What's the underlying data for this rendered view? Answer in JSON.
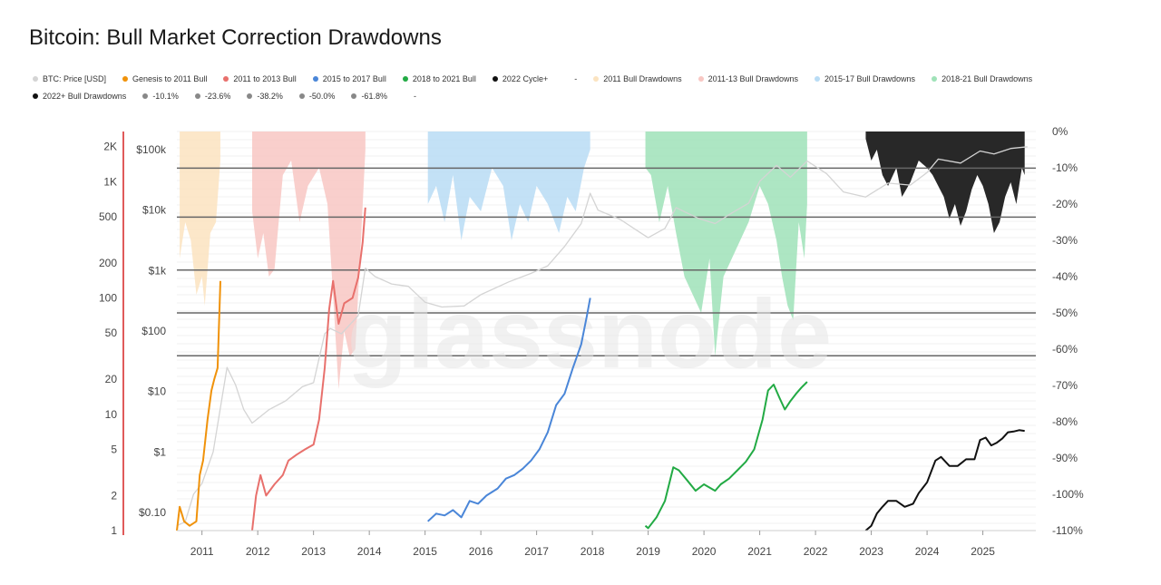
{
  "title": "Bitcoin: Bull Market Correction Drawdowns",
  "legend": {
    "row1": [
      {
        "label": "BTC: Price [USD]",
        "color": "#d4d4d4"
      },
      {
        "label": "Genesis to 2011 Bull",
        "color": "#f0920a"
      },
      {
        "label": "2011 to 2013 Bull",
        "color": "#e8706c"
      },
      {
        "label": "2015 to 2017 Bull",
        "color": "#4a86d8"
      },
      {
        "label": "2018 to 2021 Bull",
        "color": "#22aa44"
      },
      {
        "label": "2022 Cycle+",
        "color": "#111111"
      },
      {
        "label": "-",
        "color": "#ffffff"
      },
      {
        "label": "2011 Bull Drawdowns",
        "color": "#fbe3c0"
      },
      {
        "label": "2011-13 Bull Drawdowns",
        "color": "#f8c7c3"
      },
      {
        "label": "2015-17 Bull Drawdowns",
        "color": "#b9dcf5"
      },
      {
        "label": "2018-21 Bull Drawdowns",
        "color": "#9fe2b8"
      }
    ],
    "row2": [
      {
        "label": "2022+ Bull Drawdowns",
        "color": "#111111"
      },
      {
        "label": "-10.1%",
        "color": "#888888"
      },
      {
        "label": "-23.6%",
        "color": "#888888"
      },
      {
        "label": "-38.2%",
        "color": "#888888"
      },
      {
        "label": "-50.0%",
        "color": "#888888"
      },
      {
        "label": "-61.8%",
        "color": "#888888"
      },
      {
        "label": "-",
        "color": "#ffffff"
      }
    ]
  },
  "watermark": "glassnode",
  "chart_data": {
    "type": "line",
    "x_ticks": [
      "2011",
      "2012",
      "2013",
      "2014",
      "2015",
      "2016",
      "2017",
      "2018",
      "2019",
      "2020",
      "2021",
      "2022",
      "2023",
      "2024",
      "2025"
    ],
    "xlim": [
      2010.55,
      2025.95
    ],
    "multiple_axis": {
      "ticks": [
        "1",
        "2",
        "5",
        "10",
        "20",
        "50",
        "100",
        "200",
        "500",
        "1K",
        "2K"
      ],
      "log": true,
      "range": [
        1,
        2700
      ],
      "color": "#e05a5a"
    },
    "price_axis": {
      "ticks": [
        "$0.10",
        "$1",
        "$10",
        "$100",
        "$1k",
        "$10k",
        "$100k"
      ],
      "log": true,
      "range": [
        0.05,
        200000
      ]
    },
    "drawdown_axis": {
      "ticks": [
        "0%",
        "-10%",
        "-20%",
        "-30%",
        "-40%",
        "-50%",
        "-60%",
        "-70%",
        "-80%",
        "-90%",
        "-100%",
        "-110%"
      ],
      "range": [
        -110,
        0
      ]
    },
    "fib_levels": [
      -10.1,
      -23.6,
      -38.2,
      -50.0,
      -61.8
    ],
    "series": [
      {
        "name": "BTC: Price [USD]",
        "color": "#d4d4d4",
        "axis": "price",
        "x": [
          2010.55,
          2010.7,
          2010.85,
          2011.0,
          2011.2,
          2011.45,
          2011.6,
          2011.75,
          2011.9,
          2012.2,
          2012.5,
          2012.8,
          2013.0,
          2013.2,
          2013.3,
          2013.5,
          2013.8,
          2013.93,
          2014.1,
          2014.4,
          2014.7,
          2015.0,
          2015.3,
          2015.7,
          2016.0,
          2016.5,
          2016.9,
          2017.2,
          2017.5,
          2017.8,
          2017.96,
          2018.1,
          2018.5,
          2018.9,
          2019.0,
          2019.3,
          2019.5,
          2019.9,
          2020.2,
          2020.5,
          2020.8,
          2021.0,
          2021.3,
          2021.55,
          2021.85,
          2022.2,
          2022.5,
          2022.9,
          2023.3,
          2023.7,
          2024.0,
          2024.2,
          2024.6,
          2024.95,
          2025.2,
          2025.5,
          2025.8
        ],
        "y": [
          0.06,
          0.07,
          0.2,
          0.3,
          1,
          25,
          13,
          5,
          3,
          5,
          7,
          12,
          14,
          90,
          110,
          90,
          180,
          1100,
          800,
          600,
          550,
          300,
          250,
          260,
          400,
          650,
          900,
          1200,
          2500,
          6000,
          19000,
          10000,
          7000,
          4000,
          3500,
          5000,
          11000,
          7300,
          6000,
          9000,
          13000,
          30000,
          55000,
          35000,
          65000,
          40000,
          20000,
          16500,
          28000,
          26000,
          42000,
          70000,
          60000,
          95000,
          85000,
          105000,
          112000
        ]
      },
      {
        "name": "Genesis to 2011 Bull",
        "color": "#f0920a",
        "axis": "multiple",
        "x": [
          2010.55,
          2010.6,
          2010.68,
          2010.78,
          2010.9,
          2010.96,
          2011.02,
          2011.1,
          2011.17,
          2011.22,
          2011.28,
          2011.33
        ],
        "y": [
          1,
          1.6,
          1.2,
          1.1,
          1.2,
          3,
          4,
          9,
          16,
          20,
          25,
          140
        ]
      },
      {
        "name": "2011 to 2013 Bull",
        "color": "#e8706c",
        "axis": "multiple",
        "x": [
          2011.9,
          2011.97,
          2012.05,
          2012.15,
          2012.3,
          2012.45,
          2012.55,
          2012.7,
          2012.85,
          2013.0,
          2013.1,
          2013.2,
          2013.28,
          2013.35,
          2013.45,
          2013.55,
          2013.7,
          2013.8,
          2013.88,
          2013.93
        ],
        "y": [
          1,
          2,
          3,
          2,
          2.5,
          3,
          4,
          4.5,
          5,
          5.5,
          9,
          25,
          80,
          140,
          60,
          90,
          100,
          150,
          300,
          600
        ]
      },
      {
        "name": "2015 to 2017 Bull",
        "color": "#4a86d8",
        "axis": "multiple",
        "x": [
          2015.05,
          2015.2,
          2015.35,
          2015.5,
          2015.65,
          2015.8,
          2015.95,
          2016.1,
          2016.3,
          2016.45,
          2016.6,
          2016.75,
          2016.9,
          2017.05,
          2017.2,
          2017.35,
          2017.5,
          2017.65,
          2017.8,
          2017.9,
          2017.96
        ],
        "y": [
          1.2,
          1.4,
          1.35,
          1.5,
          1.3,
          1.8,
          1.7,
          2,
          2.3,
          2.8,
          3,
          3.4,
          4,
          5,
          7,
          12,
          15,
          25,
          40,
          70,
          100
        ]
      },
      {
        "name": "2018 to 2021 Bull",
        "color": "#22aa44",
        "axis": "multiple",
        "x": [
          2018.95,
          2019.0,
          2019.15,
          2019.3,
          2019.45,
          2019.55,
          2019.7,
          2019.85,
          2020.0,
          2020.2,
          2020.3,
          2020.45,
          2020.6,
          2020.75,
          2020.9,
          2021.05,
          2021.15,
          2021.25,
          2021.35,
          2021.45,
          2021.55,
          2021.65,
          2021.75,
          2021.85
        ],
        "y": [
          1.1,
          1.05,
          1.3,
          1.8,
          3.5,
          3.3,
          2.7,
          2.2,
          2.5,
          2.2,
          2.5,
          2.8,
          3.3,
          3.9,
          5,
          9,
          16,
          18,
          14,
          11,
          13,
          15,
          17,
          19
        ]
      },
      {
        "name": "2022 Cycle+",
        "color": "#111111",
        "axis": "multiple",
        "x": [
          2022.9,
          2023.0,
          2023.1,
          2023.2,
          2023.3,
          2023.45,
          2023.6,
          2023.75,
          2023.85,
          2024.0,
          2024.15,
          2024.25,
          2024.4,
          2024.55,
          2024.7,
          2024.85,
          2024.95,
          2025.05,
          2025.15,
          2025.25,
          2025.35,
          2025.45,
          2025.55,
          2025.65,
          2025.75
        ],
        "y": [
          1,
          1.1,
          1.4,
          1.6,
          1.8,
          1.8,
          1.6,
          1.7,
          2.1,
          2.6,
          4,
          4.3,
          3.6,
          3.6,
          4.1,
          4.1,
          6,
          6.3,
          5.4,
          5.7,
          6.2,
          7,
          7.1,
          7.3,
          7.2
        ]
      }
    ],
    "drawdown_bands": [
      {
        "name": "2011 Bull Drawdowns",
        "color": "#fbe3c0",
        "x": [
          2010.6,
          2010.7,
          2010.8,
          2010.9,
          2011.0,
          2011.05,
          2011.15,
          2011.25,
          2011.33
        ],
        "y": [
          -35,
          -25,
          -30,
          -45,
          -40,
          -48,
          -28,
          -25,
          -8
        ]
      },
      {
        "name": "2011-13 Bull Drawdowns",
        "color": "#f8c7c3",
        "x": [
          2011.9,
          2012.0,
          2012.1,
          2012.2,
          2012.3,
          2012.45,
          2012.6,
          2012.75,
          2012.9,
          2013.1,
          2013.25,
          2013.35,
          2013.45,
          2013.55,
          2013.65,
          2013.75,
          2013.85,
          2013.93
        ],
        "y": [
          -22,
          -35,
          -28,
          -40,
          -38,
          -12,
          -8,
          -25,
          -15,
          -10,
          -20,
          -45,
          -71,
          -55,
          -62,
          -60,
          -30,
          -5
        ]
      },
      {
        "name": "2015-17 Bull Drawdowns",
        "color": "#b9dcf5",
        "x": [
          2015.05,
          2015.2,
          2015.35,
          2015.5,
          2015.65,
          2015.8,
          2016.0,
          2016.2,
          2016.4,
          2016.55,
          2016.7,
          2016.85,
          2017.0,
          2017.2,
          2017.4,
          2017.55,
          2017.7,
          2017.85,
          2017.96
        ],
        "y": [
          -20,
          -15,
          -25,
          -12,
          -30,
          -18,
          -22,
          -10,
          -15,
          -30,
          -20,
          -25,
          -15,
          -20,
          -28,
          -18,
          -22,
          -10,
          -5
        ]
      },
      {
        "name": "2018-21 Bull Drawdowns",
        "color": "#9fe2b8",
        "x": [
          2018.95,
          2019.05,
          2019.2,
          2019.35,
          2019.5,
          2019.65,
          2019.8,
          2019.95,
          2020.1,
          2020.2,
          2020.35,
          2020.5,
          2020.65,
          2020.8,
          2021.0,
          2021.15,
          2021.3,
          2021.4,
          2021.5,
          2021.6,
          2021.7,
          2021.8,
          2021.85
        ],
        "y": [
          -10,
          -12,
          -25,
          -15,
          -28,
          -40,
          -45,
          -50,
          -35,
          -62,
          -40,
          -35,
          -30,
          -25,
          -15,
          -20,
          -30,
          -40,
          -48,
          -52,
          -25,
          -35,
          -20
        ]
      },
      {
        "name": "2022+ Bull Drawdowns",
        "color": "#111111",
        "x": [
          2022.9,
          2023.0,
          2023.1,
          2023.2,
          2023.3,
          2023.45,
          2023.55,
          2023.7,
          2023.85,
          2024.0,
          2024.1,
          2024.2,
          2024.3,
          2024.4,
          2024.5,
          2024.6,
          2024.7,
          2024.8,
          2024.9,
          2025.0,
          2025.1,
          2025.2,
          2025.3,
          2025.4,
          2025.5,
          2025.6,
          2025.7,
          2025.75
        ],
        "y": [
          -2,
          -8,
          -5,
          -12,
          -15,
          -10,
          -18,
          -14,
          -8,
          -10,
          -12,
          -15,
          -18,
          -24,
          -20,
          -26,
          -22,
          -16,
          -12,
          -15,
          -20,
          -28,
          -25,
          -18,
          -14,
          -20,
          -10,
          -12
        ]
      }
    ]
  }
}
